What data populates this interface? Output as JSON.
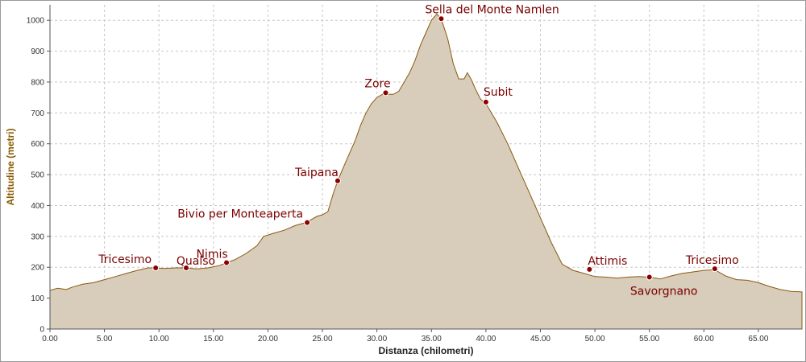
{
  "chart_data": {
    "type": "area",
    "title": "",
    "xlabel": "Distanza (chilometri)",
    "ylabel": "Altitudine (metri)",
    "xlim": [
      0,
      69
    ],
    "ylim": [
      0,
      1050
    ],
    "x_ticks": [
      "0.00",
      "5.00",
      "10.00",
      "15.00",
      "20.00",
      "25.00",
      "30.00",
      "35.00",
      "40.00",
      "45.00",
      "50.00",
      "55.00",
      "60.00",
      "65.00"
    ],
    "y_ticks": [
      "0",
      "100",
      "200",
      "300",
      "400",
      "500",
      "600",
      "700",
      "800",
      "900",
      "1000"
    ],
    "grid": true,
    "legend": "none",
    "colors": {
      "fill": "#d8ccba",
      "line": "#8a5a10",
      "marker": "#8b0000",
      "label": "#7a0000"
    },
    "series": [
      {
        "x": [
          0,
          0.7,
          1.5,
          2,
          3,
          4,
          5,
          6,
          7,
          8,
          9,
          9.7,
          10.5,
          11.5,
          12.5,
          13.5,
          14.5,
          15.5,
          16.2,
          17,
          18,
          19,
          19.6,
          20.5,
          21.5,
          22.5,
          23.5,
          24.5,
          25,
          25.5,
          26,
          26.4,
          27,
          27.5,
          28,
          28.5,
          29,
          29.5,
          30,
          30.5,
          30.8,
          31,
          31.5,
          32,
          32.5,
          33,
          33.5,
          34,
          34.5,
          35,
          35.5,
          35.9,
          36.5,
          37,
          37.5,
          38,
          38.3,
          38.7,
          39,
          39.5,
          40,
          41,
          42,
          43,
          44,
          45,
          46,
          47,
          48,
          49,
          49.5,
          50,
          51,
          52,
          53,
          54,
          55,
          56,
          57,
          58,
          59,
          60,
          61,
          62,
          63,
          64,
          65,
          66,
          67,
          68,
          69
        ],
        "y": [
          125,
          132,
          128,
          135,
          145,
          150,
          160,
          170,
          180,
          190,
          198,
          198,
          196,
          198,
          198,
          195,
          198,
          205,
          215,
          225,
          245,
          270,
          300,
          310,
          320,
          335,
          345,
          365,
          370,
          380,
          440,
          480,
          530,
          570,
          610,
          660,
          700,
          730,
          750,
          760,
          765,
          760,
          760,
          770,
          800,
          830,
          870,
          920,
          960,
          1000,
          1020,
          1005,
          940,
          860,
          810,
          810,
          830,
          805,
          780,
          745,
          730,
          670,
          600,
          520,
          440,
          360,
          280,
          210,
          190,
          180,
          175,
          170,
          168,
          165,
          168,
          170,
          168,
          162,
          172,
          180,
          185,
          190,
          192,
          172,
          160,
          158,
          150,
          138,
          128,
          122,
          120
        ]
      }
    ],
    "waypoints": [
      {
        "name": "Tricesimo",
        "x": 9.7,
        "y": 198
      },
      {
        "name": "Qualso",
        "x": 12.5,
        "y": 198
      },
      {
        "name": "Nimis",
        "x": 16.2,
        "y": 215
      },
      {
        "name": "Bivio per Monteaperta",
        "x": 23.6,
        "y": 345
      },
      {
        "name": "Taipana",
        "x": 26.4,
        "y": 480
      },
      {
        "name": "Zore",
        "x": 30.8,
        "y": 765
      },
      {
        "name": "Sella del Monte Namlen",
        "x": 35.9,
        "y": 1005
      },
      {
        "name": "Subit",
        "x": 40,
        "y": 735
      },
      {
        "name": "Attimis",
        "x": 49.5,
        "y": 193
      },
      {
        "name": "Savorgnano",
        "x": 55,
        "y": 168
      },
      {
        "name": "Tricesimo",
        "x": 61,
        "y": 195
      }
    ]
  }
}
